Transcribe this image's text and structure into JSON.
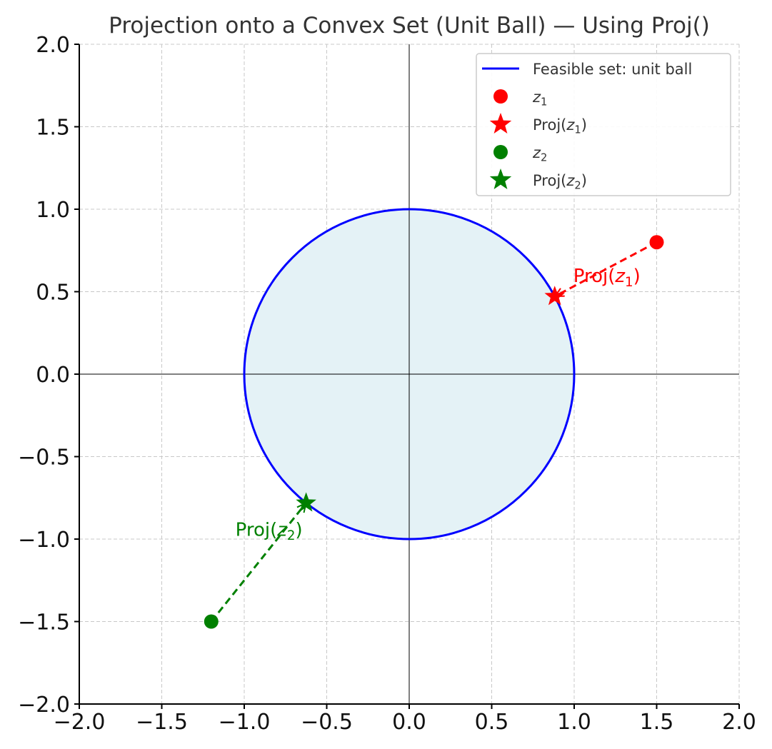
{
  "chart_data": {
    "type": "scatter",
    "title": "Projection onto a Convex Set (Unit Ball) — Using Proj()",
    "xlabel": "",
    "ylabel": "",
    "xlim": [
      -2.0,
      2.0
    ],
    "ylim": [
      -2.0,
      2.0
    ],
    "grid": true,
    "legend_position": "top-right",
    "x_ticks": [
      -2.0,
      -1.5,
      -1.0,
      -0.5,
      0.0,
      0.5,
      1.0,
      1.5,
      2.0
    ],
    "y_ticks": [
      -2.0,
      -1.5,
      -1.0,
      -0.5,
      0.0,
      0.5,
      1.0,
      1.5,
      2.0
    ],
    "x_tick_labels": [
      "−2.0",
      "−1.5",
      "−1.0",
      "−0.5",
      "0.0",
      "0.5",
      "1.0",
      "1.5",
      "2.0"
    ],
    "y_tick_labels": [
      "−2.0",
      "−1.5",
      "−1.0",
      "−0.5",
      "0.0",
      "0.5",
      "1.0",
      "1.5",
      "2.0"
    ],
    "feasible_set": {
      "shape": "circle",
      "center": [
        0,
        0
      ],
      "radius": 1.0,
      "color": "#0000ff",
      "fill": "#e4f2f6"
    },
    "points": [
      {
        "name": "z1",
        "point": [
          1.5,
          0.8
        ],
        "projection": [
          0.882,
          0.471
        ],
        "color": "#ff0000",
        "label_main": "Proj(",
        "label_var": "z",
        "label_sub": "1",
        "label_end": ")"
      },
      {
        "name": "z2",
        "point": [
          -1.2,
          -1.5
        ],
        "projection": [
          -0.625,
          -0.781
        ],
        "color": "#008000",
        "label_main": "Proj(",
        "label_var": "z",
        "label_sub": "2",
        "label_end": ")"
      }
    ],
    "legend": [
      {
        "kind": "line",
        "color": "#0000ff",
        "text": "Feasible set: unit ball"
      },
      {
        "kind": "dot",
        "color": "#ff0000",
        "var": "z",
        "sub": "1"
      },
      {
        "kind": "star",
        "color": "#ff0000",
        "pre": "Proj(",
        "var": "z",
        "sub": "1",
        "post": ")"
      },
      {
        "kind": "dot",
        "color": "#008000",
        "var": "z",
        "sub": "2"
      },
      {
        "kind": "star",
        "color": "#008000",
        "pre": "Proj(",
        "var": "z",
        "sub": "2",
        "post": ")"
      }
    ]
  }
}
